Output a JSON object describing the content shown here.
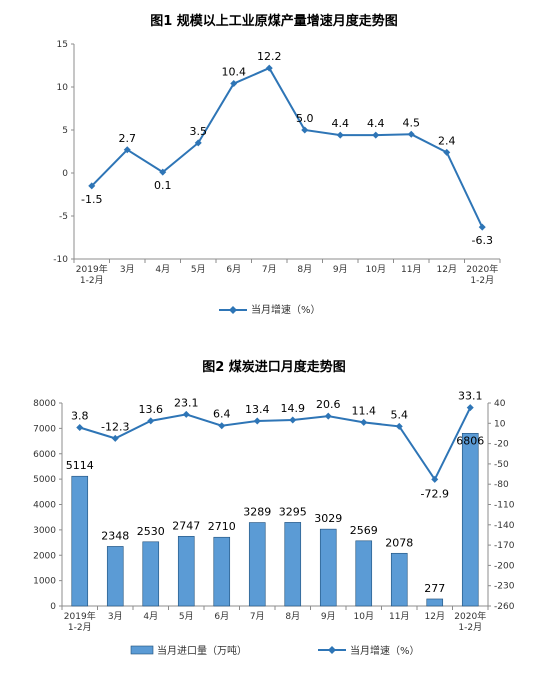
{
  "chart_data": [
    {
      "type": "line",
      "title": "图1  规模以上工业原煤产量增速月度走势图",
      "categories": [
        "2019年\n1-2月",
        "3月",
        "4月",
        "5月",
        "6月",
        "7月",
        "8月",
        "9月",
        "10月",
        "11月",
        "12月",
        "2020年\n1-2月"
      ],
      "series": [
        {
          "name": "当月增速（%）",
          "values": [
            -1.5,
            2.7,
            0.1,
            3.5,
            10.4,
            12.2,
            5.0,
            4.4,
            4.4,
            4.5,
            2.4,
            -6.3
          ],
          "color": "#2e75b6"
        }
      ],
      "data_labels": [
        "-1.5",
        "2.7",
        "0.1",
        "3.5",
        "10.4",
        "12.2",
        "5.0",
        "4.4",
        "4.4",
        "4.5",
        "2.4",
        "-6.3"
      ],
      "ylim": [
        -10,
        15
      ],
      "yticks": [
        "15",
        "10",
        "5",
        "0",
        "-5",
        "-10"
      ],
      "legend": "bottom"
    },
    {
      "type": "bar",
      "title": "图2  煤炭进口月度走势图",
      "categories": [
        "2019年\n1-2月",
        "3月",
        "4月",
        "5月",
        "6月",
        "7月",
        "8月",
        "9月",
        "10月",
        "11月",
        "12月",
        "2020年\n1-2月"
      ],
      "series": [
        {
          "name": "当月进口量（万吨）",
          "type": "bar",
          "axis": "left",
          "values": [
            5114,
            2348,
            2530,
            2747,
            2710,
            3289,
            3295,
            3029,
            2569,
            2078,
            277,
            6806
          ],
          "color": "#5b9bd5"
        },
        {
          "name": "当月增速（%）",
          "type": "line",
          "axis": "right",
          "values": [
            3.8,
            -12.3,
            13.6,
            23.1,
            6.4,
            13.4,
            14.9,
            20.6,
            11.4,
            5.4,
            -72.9,
            33.1
          ],
          "color": "#2e75b6"
        }
      ],
      "bar_labels": [
        "5114",
        "2348",
        "2530",
        "2747",
        "2710",
        "3289",
        "3295",
        "3029",
        "2569",
        "2078",
        "277",
        "6806"
      ],
      "line_labels": [
        "3.8",
        "-12.3",
        "13.6",
        "23.1",
        "6.4",
        "13.4",
        "14.9",
        "20.6",
        "11.4",
        "5.4",
        "-72.9",
        "33.1"
      ],
      "ylim_left": [
        0,
        8000
      ],
      "ylim_right": [
        -260,
        40
      ],
      "yticks_left": [
        "8000",
        "7000",
        "6000",
        "5000",
        "4000",
        "3000",
        "2000",
        "1000",
        "0"
      ],
      "yticks_right": [
        "40",
        "10",
        "-20",
        "-50",
        "-80",
        "-110",
        "-140",
        "-170",
        "-200",
        "-230",
        "-260"
      ],
      "legend": "bottom"
    }
  ]
}
